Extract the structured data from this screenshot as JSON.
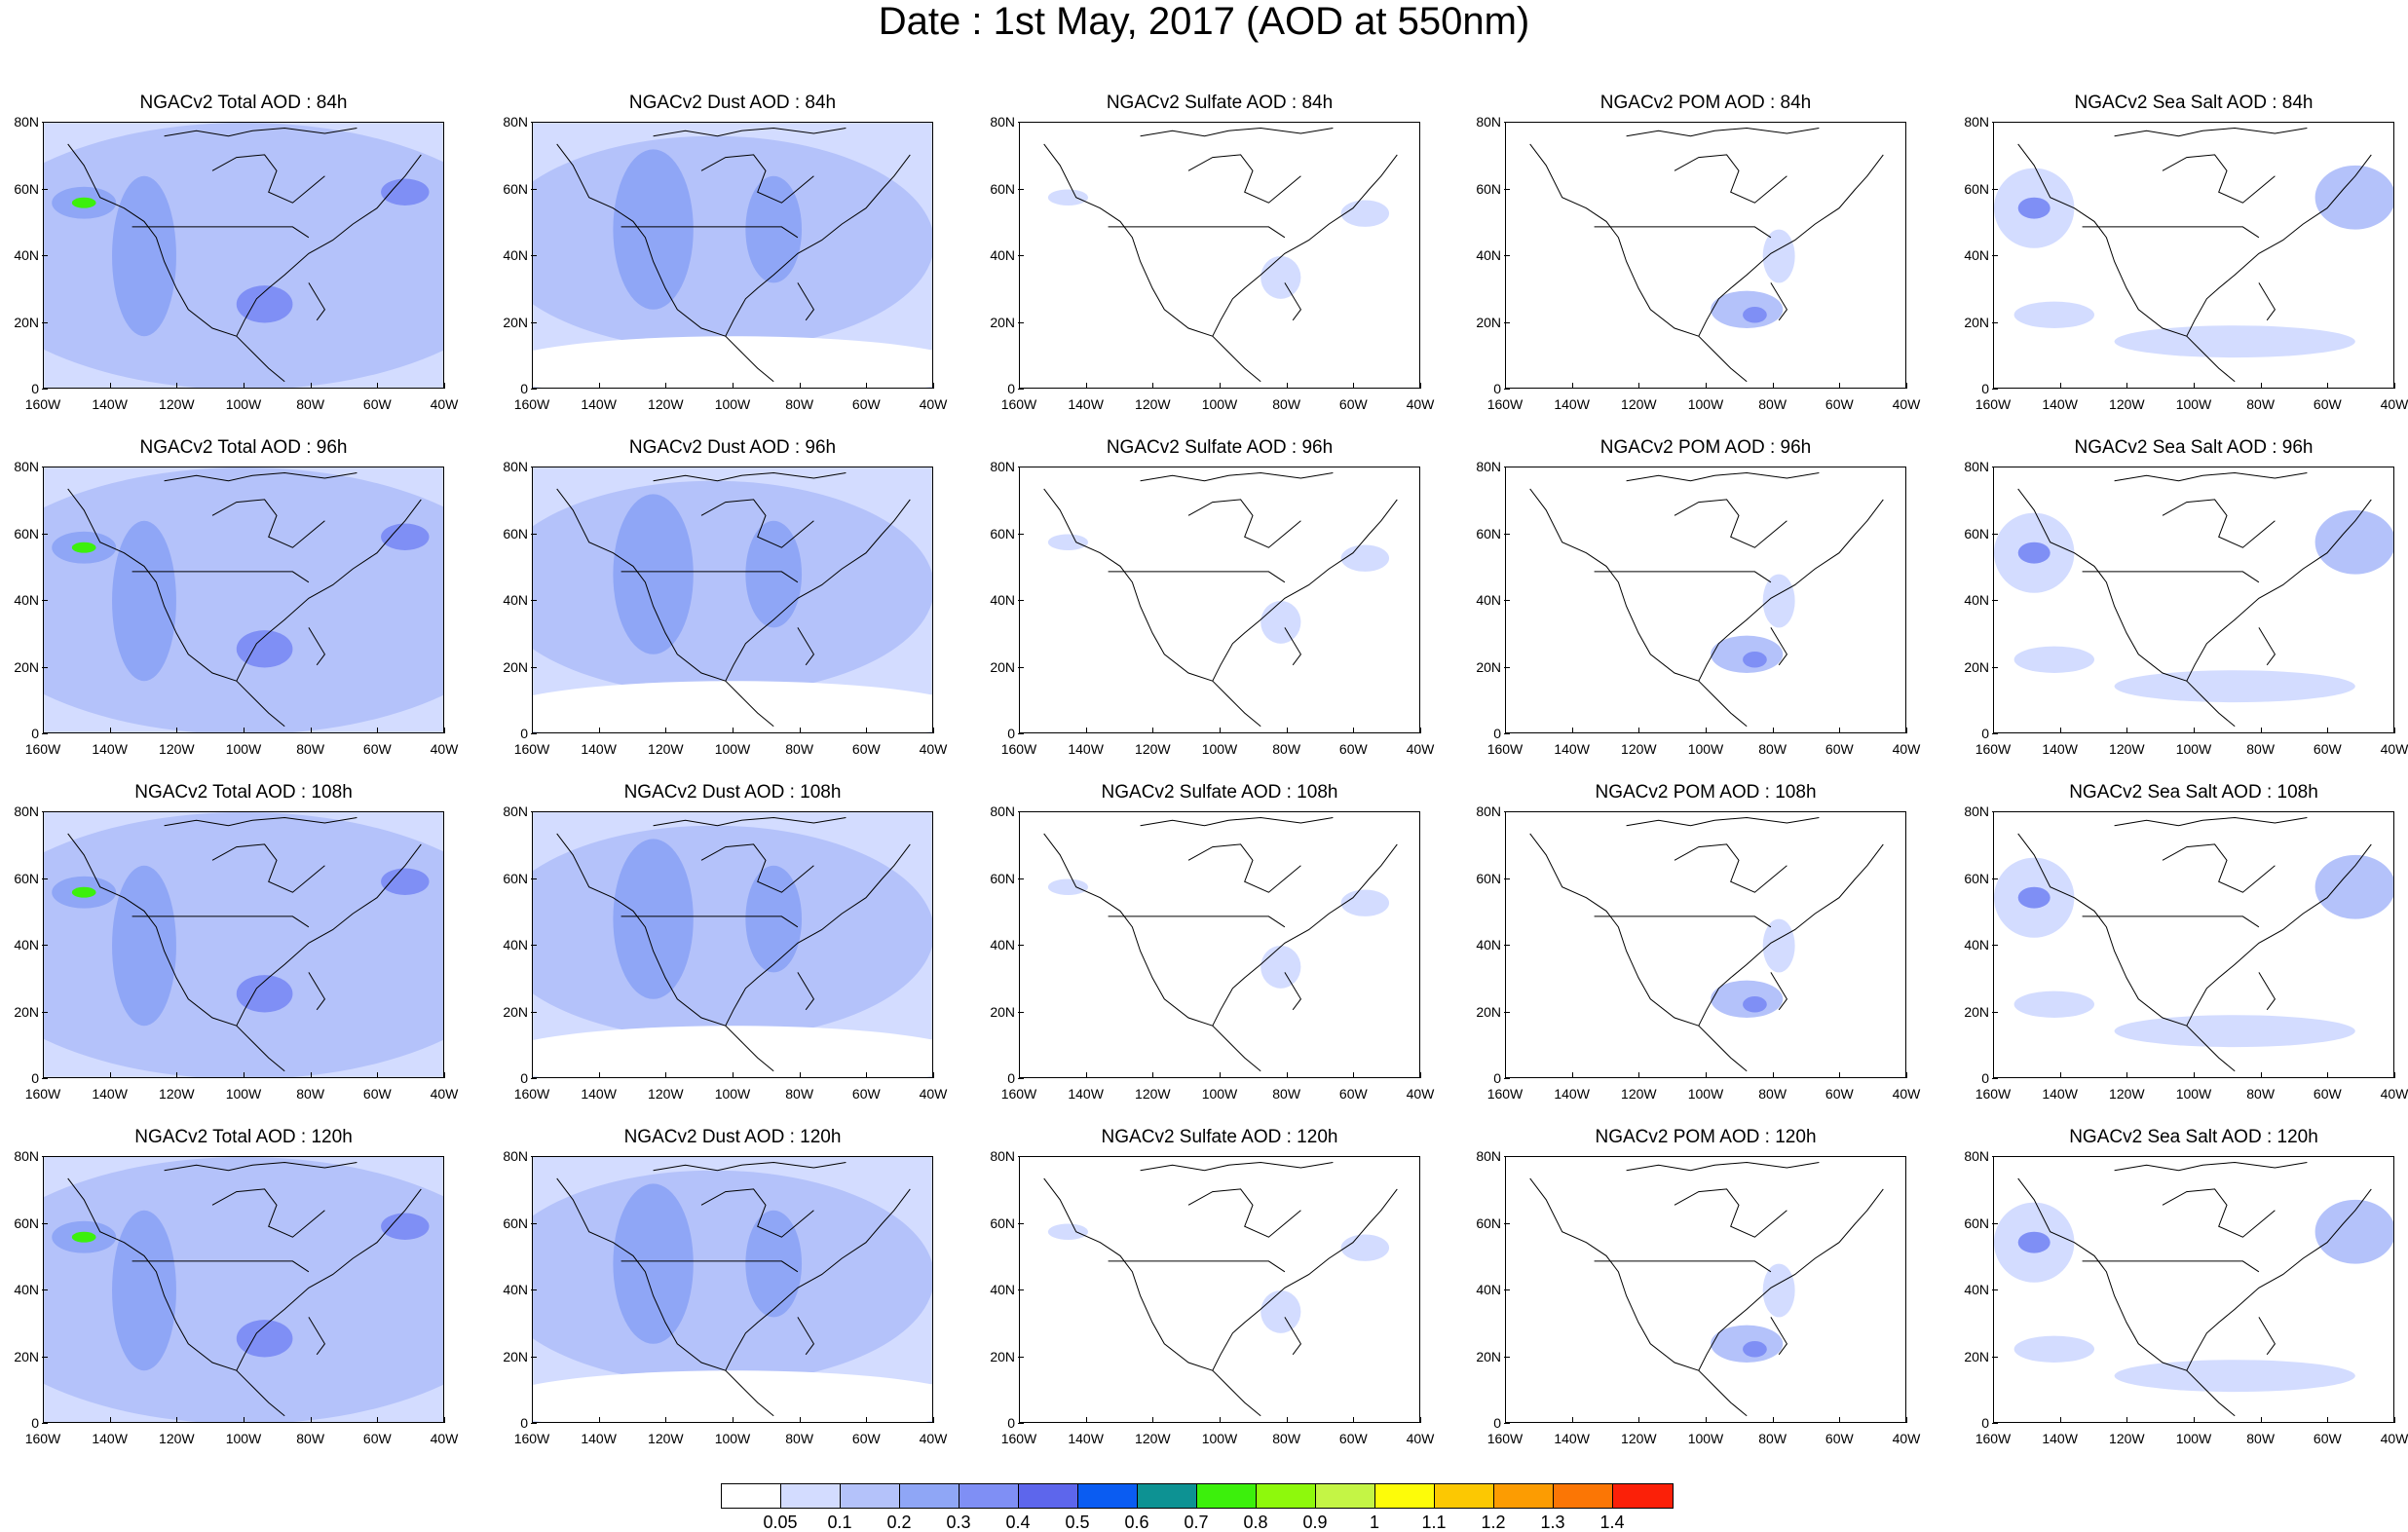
{
  "title": "Date : 1st May, 2017 (AOD at 550nm)",
  "lat_labels": [
    "80N",
    "60N",
    "40N",
    "20N",
    "0"
  ],
  "lon_labels": [
    "160W",
    "140W",
    "120W",
    "100W",
    "80W",
    "60W",
    "40W"
  ],
  "columns": [
    {
      "key": "total",
      "label_prefix": "NGACv2 Total AOD"
    },
    {
      "key": "dust",
      "label_prefix": "NGACv2 Dust AOD"
    },
    {
      "key": "sulfate",
      "label_prefix": "NGACv2 Sulfate AOD"
    },
    {
      "key": "pom",
      "label_prefix": "NGACv2 POM AOD"
    },
    {
      "key": "seasalt",
      "label_prefix": "NGACv2 Sea Salt AOD"
    }
  ],
  "panel_titles": [
    [
      "NGACv2 Total AOD : 84h",
      "NGACv2 Dust AOD : 84h",
      "NGACv2 Sulfate AOD : 84h",
      "NGACv2 POM AOD : 84h",
      "NGACv2 Sea Salt AOD : 84h"
    ],
    [
      "NGACv2 Total AOD : 96h",
      "NGACv2 Dust AOD : 96h",
      "NGACv2 Sulfate AOD : 96h",
      "NGACv2 POM AOD : 96h",
      "NGACv2 Sea Salt AOD : 96h"
    ],
    [
      "NGACv2 Total AOD : 108h",
      "NGACv2 Dust AOD : 108h",
      "NGACv2 Sulfate AOD : 108h",
      "NGACv2 POM AOD : 108h",
      "NGACv2 Sea Salt AOD : 108h"
    ],
    [
      "NGACv2 Total AOD : 120h",
      "NGACv2 Dust AOD : 120h",
      "NGACv2 Sulfate AOD : 120h",
      "NGACv2 POM AOD : 120h",
      "NGACv2 Sea Salt  AOD : 120h"
    ]
  ],
  "colorbar": {
    "labels": [
      "0.05",
      "0.1",
      "0.2",
      "0.3",
      "0.4",
      "0.5",
      "0.6",
      "0.7",
      "0.8",
      "0.9",
      "1",
      "1.1",
      "1.2",
      "1.3",
      "1.4"
    ],
    "colors": [
      "#ffffff",
      "#d3dcff",
      "#b4c2fa",
      "#8fa6f6",
      "#7f8ff5",
      "#5d66ec",
      "#0a5cf2",
      "#0d9293",
      "#3cf00c",
      "#8ef90c",
      "#c4f545",
      "#fdfc09",
      "#fcc802",
      "#fc9c02",
      "#fb7605",
      "#fb2008"
    ]
  }
}
